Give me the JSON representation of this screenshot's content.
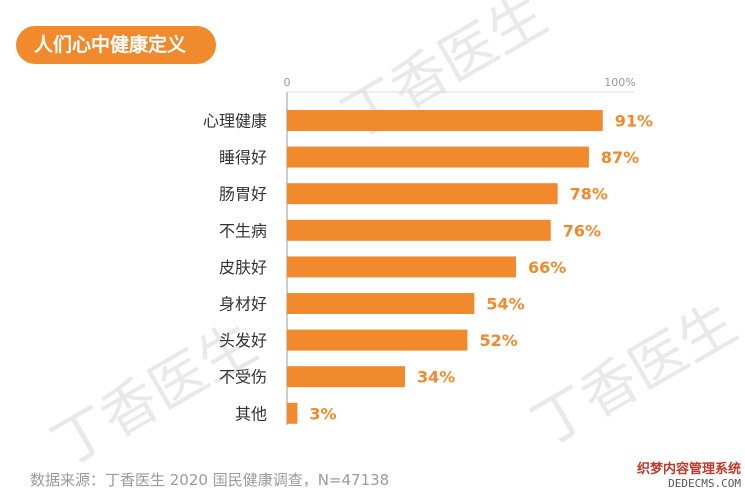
{
  "title": "人们心中健康定义",
  "watermark": "丁香医生",
  "source": "数据来源：丁香医生 2020 国民健康调查，N=47138",
  "corner_logo": {
    "line1": "织梦内容管理系统",
    "line2": "DEDECMS.COM"
  },
  "colors": {
    "accent": "#f08a2c",
    "bar": "#f08a2c",
    "label": "#333333",
    "value": "#f08a2c",
    "axis": "#999999"
  },
  "chart_data": {
    "type": "bar",
    "orientation": "horizontal",
    "categories": [
      "心理健康",
      "睡得好",
      "肠胃好",
      "不生病",
      "皮肤好",
      "身材好",
      "头发好",
      "不受伤",
      "其他"
    ],
    "values": [
      91,
      87,
      78,
      76,
      66,
      54,
      52,
      34,
      3
    ],
    "value_labels": [
      "91%",
      "87%",
      "78%",
      "76%",
      "66%",
      "54%",
      "52%",
      "34%",
      "3%"
    ],
    "axis_ticks": [
      "0",
      "100%"
    ],
    "xlim": [
      0,
      100
    ],
    "grid": false
  }
}
